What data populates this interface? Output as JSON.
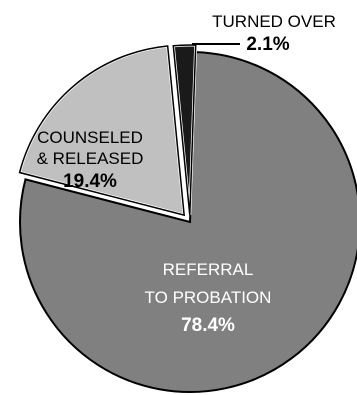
{
  "chart_data": {
    "type": "pie",
    "slices": [
      {
        "label_lines": [
          "REFERRAL",
          "TO PROBATION"
        ],
        "percent_label": "78.4%",
        "value": 78.4,
        "color": "#808080"
      },
      {
        "label_lines": [
          "COUNSELED",
          "& RELEASED"
        ],
        "percent_label": "19.4%",
        "value": 19.4,
        "color": "#c0c0c0"
      },
      {
        "label_lines": [
          "TURNED OVER"
        ],
        "percent_label": "2.1%",
        "value": 2.1,
        "color": "#1a1a1a"
      }
    ],
    "edge_color": "#000000",
    "separator_color": "#ffffff"
  }
}
